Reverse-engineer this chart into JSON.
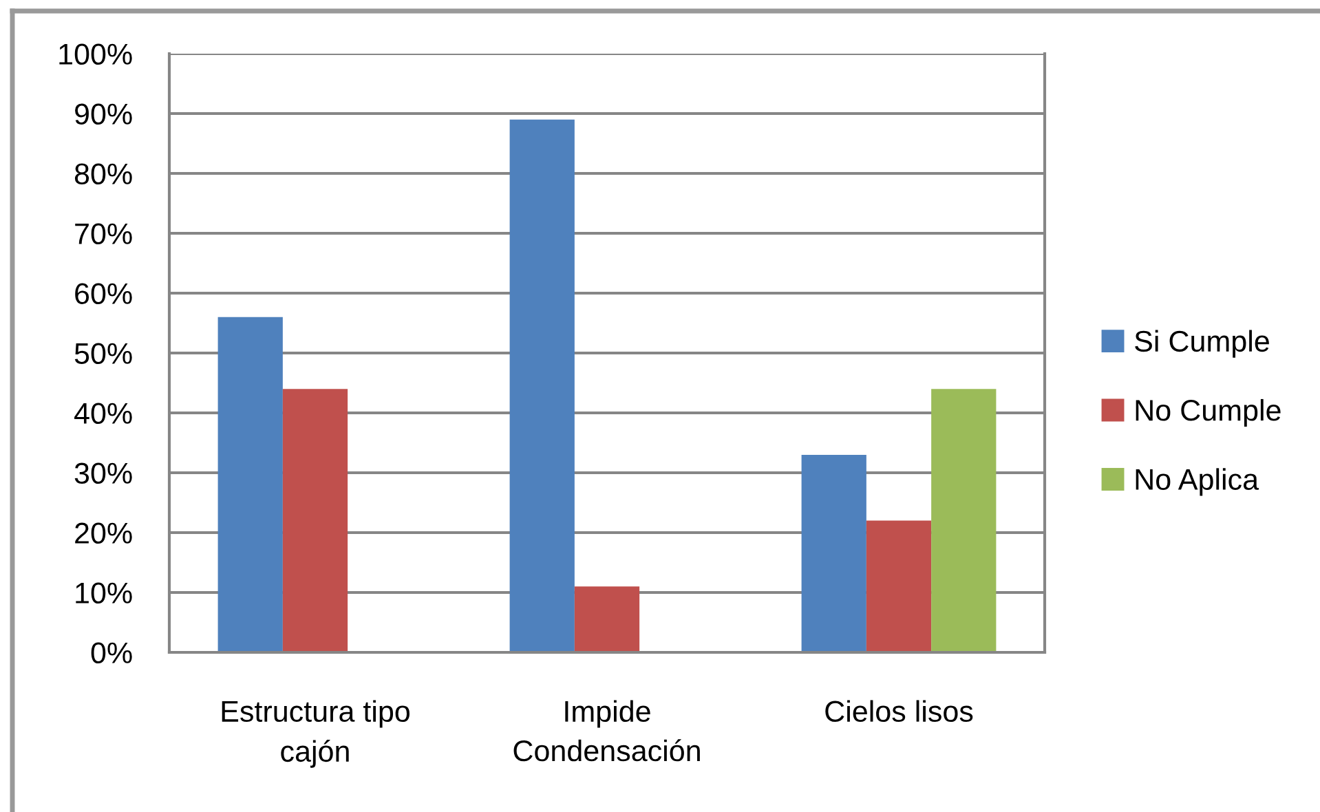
{
  "chart_data": {
    "type": "bar",
    "categories": [
      "Estructura tipo cajón",
      "Impide Condensación",
      "Cielos lisos"
    ],
    "series": [
      {
        "name": "Si Cumple",
        "color": "#4f81bd",
        "values": [
          56,
          89,
          33
        ]
      },
      {
        "name": "No Cumple",
        "color": "#c0504d",
        "values": [
          44,
          11,
          22
        ]
      },
      {
        "name": "No Aplica",
        "color": "#9bbb59",
        "values": [
          null,
          null,
          44
        ]
      }
    ],
    "ylim": [
      0,
      100
    ],
    "yticks": [
      {
        "value": 0,
        "label": "0%"
      },
      {
        "value": 10,
        "label": "10%"
      },
      {
        "value": 20,
        "label": "20%"
      },
      {
        "value": 30,
        "label": "30%"
      },
      {
        "value": 40,
        "label": "40%"
      },
      {
        "value": 50,
        "label": "50%"
      },
      {
        "value": 60,
        "label": "60%"
      },
      {
        "value": 70,
        "label": "70%"
      },
      {
        "value": 80,
        "label": "80%"
      },
      {
        "value": 90,
        "label": "90%"
      },
      {
        "value": 100,
        "label": "100%"
      }
    ],
    "grid": "y",
    "legend": "right"
  }
}
